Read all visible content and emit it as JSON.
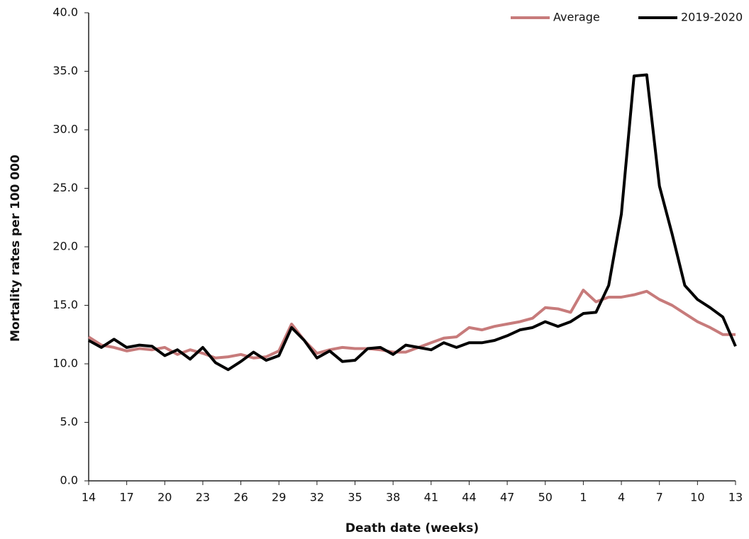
{
  "chart_data": {
    "type": "line",
    "x_label": "Death date (weeks)",
    "y_label": "Mortality rates per 100 000",
    "categories": [
      "14",
      null,
      null,
      "17",
      null,
      null,
      "20",
      null,
      null,
      "23",
      null,
      null,
      "26",
      null,
      null,
      "29",
      null,
      null,
      "32",
      null,
      null,
      "35",
      null,
      null,
      "38",
      null,
      null,
      "41",
      null,
      null,
      "44",
      null,
      null,
      "47",
      null,
      null,
      "50",
      null,
      null,
      "1",
      null,
      null,
      "4",
      null,
      null,
      "7",
      null,
      null,
      "10",
      null,
      null,
      "13"
    ],
    "series": [
      {
        "name": "Average",
        "color": "#c77b7b",
        "values": [
          12.3,
          11.6,
          11.4,
          11.1,
          11.3,
          11.2,
          11.4,
          10.8,
          11.2,
          10.9,
          10.5,
          10.6,
          10.8,
          10.5,
          10.6,
          11.1,
          13.4,
          12.0,
          10.9,
          11.2,
          11.4,
          11.3,
          11.3,
          11.2,
          11.0,
          11.0,
          11.4,
          11.8,
          12.2,
          12.3,
          13.1,
          12.9,
          13.2,
          13.4,
          13.6,
          13.9,
          14.8,
          14.7,
          14.4,
          16.3,
          15.3,
          15.7,
          15.7,
          15.9,
          16.2,
          15.5,
          15.0,
          14.3,
          13.6,
          13.1,
          12.5,
          12.5
        ]
      },
      {
        "name": "2019-2020",
        "color": "#000000",
        "values": [
          12.0,
          11.4,
          12.1,
          11.4,
          11.6,
          11.5,
          10.7,
          11.2,
          10.4,
          11.4,
          10.1,
          9.5,
          10.2,
          11.0,
          10.3,
          10.7,
          13.1,
          12.0,
          10.5,
          11.1,
          10.2,
          10.3,
          11.3,
          11.4,
          10.8,
          11.6,
          11.4,
          11.2,
          11.8,
          11.4,
          11.8,
          11.8,
          12.0,
          12.4,
          12.9,
          13.1,
          13.6,
          13.2,
          13.6,
          14.3,
          14.4,
          16.7,
          22.8,
          34.6,
          34.7,
          25.2,
          21.1,
          16.7,
          15.5,
          14.8,
          14.0,
          11.5
        ]
      }
    ],
    "ylim": [
      0,
      40
    ],
    "yticks": [
      {
        "value": 0,
        "label": "0.0"
      },
      {
        "value": 5,
        "label": "5.0"
      },
      {
        "value": 10,
        "label": "10.0"
      },
      {
        "value": 15,
        "label": "15.0"
      },
      {
        "value": 20,
        "label": "20.0"
      },
      {
        "value": 25,
        "label": "25.0"
      },
      {
        "value": 30,
        "label": "30.0"
      },
      {
        "value": 35,
        "label": "35.0"
      },
      {
        "value": 40,
        "label": "40.0"
      }
    ],
    "grid": false,
    "legend": "upper right"
  }
}
